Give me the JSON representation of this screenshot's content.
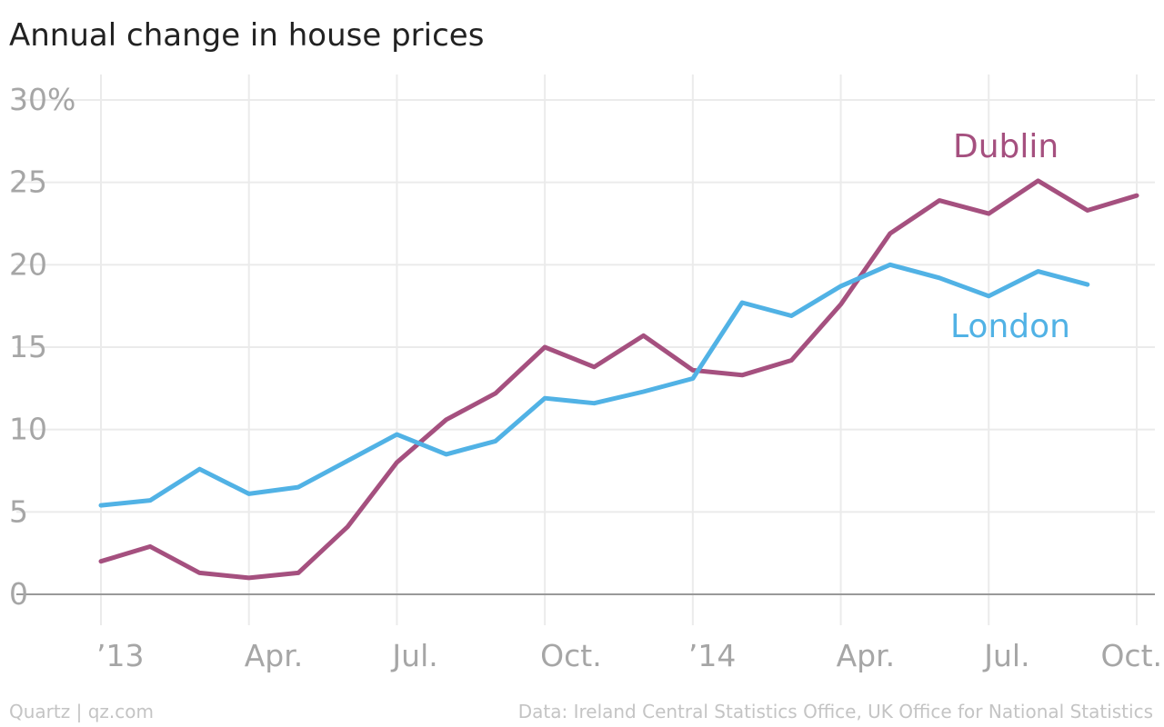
{
  "chart_data": {
    "type": "line",
    "title": "Annual change in house prices",
    "xlabel": "",
    "ylabel": "",
    "ylim": [
      0,
      30
    ],
    "yticks": [
      {
        "value": 30,
        "label": "30%"
      },
      {
        "value": 25,
        "label": "25"
      },
      {
        "value": 20,
        "label": "20"
      },
      {
        "value": 15,
        "label": "15"
      },
      {
        "value": 10,
        "label": "10"
      },
      {
        "value": 5,
        "label": "5"
      },
      {
        "value": 0,
        "label": "0"
      }
    ],
    "xticks": [
      {
        "date": "2013-01",
        "label": "’13"
      },
      {
        "date": "2013-04",
        "label": "Apr."
      },
      {
        "date": "2013-07",
        "label": "Jul."
      },
      {
        "date": "2013-10",
        "label": "Oct."
      },
      {
        "date": "2014-01",
        "label": "’14"
      },
      {
        "date": "2014-04",
        "label": "Apr."
      },
      {
        "date": "2014-07",
        "label": "Jul."
      },
      {
        "date": "2014-10",
        "label": "Oct."
      }
    ],
    "x": [
      "2013-01",
      "2013-02",
      "2013-03",
      "2013-04",
      "2013-05",
      "2013-06",
      "2013-07",
      "2013-08",
      "2013-09",
      "2013-10",
      "2013-11",
      "2013-12",
      "2014-01",
      "2014-02",
      "2014-03",
      "2014-04",
      "2014-05",
      "2014-06",
      "2014-07",
      "2014-08",
      "2014-09",
      "2014-10"
    ],
    "grid": true,
    "series": [
      {
        "name": "Dublin",
        "color": "#a5507f",
        "values": [
          2.0,
          2.9,
          1.3,
          1.0,
          1.3,
          4.1,
          8.0,
          10.6,
          12.2,
          15.0,
          13.8,
          15.7,
          13.6,
          13.3,
          14.2,
          17.6,
          21.9,
          23.9,
          23.1,
          25.1,
          23.3,
          24.2
        ]
      },
      {
        "name": "London",
        "color": "#51b2e5",
        "values": [
          5.4,
          5.7,
          7.6,
          6.1,
          6.5,
          8.1,
          9.7,
          8.5,
          9.3,
          11.9,
          11.6,
          12.3,
          13.1,
          17.7,
          16.9,
          18.7,
          20.0,
          19.2,
          18.1,
          19.6,
          18.8,
          null
        ]
      }
    ]
  },
  "footer": {
    "source_left": "Quartz | qz.com",
    "source_right": "Data: Ireland Central Statistics Office, UK Office for National Statistics"
  },
  "colors": {
    "grid": "#ebebeb",
    "axis": "#999999",
    "tick_text": "#a6a6a6"
  }
}
